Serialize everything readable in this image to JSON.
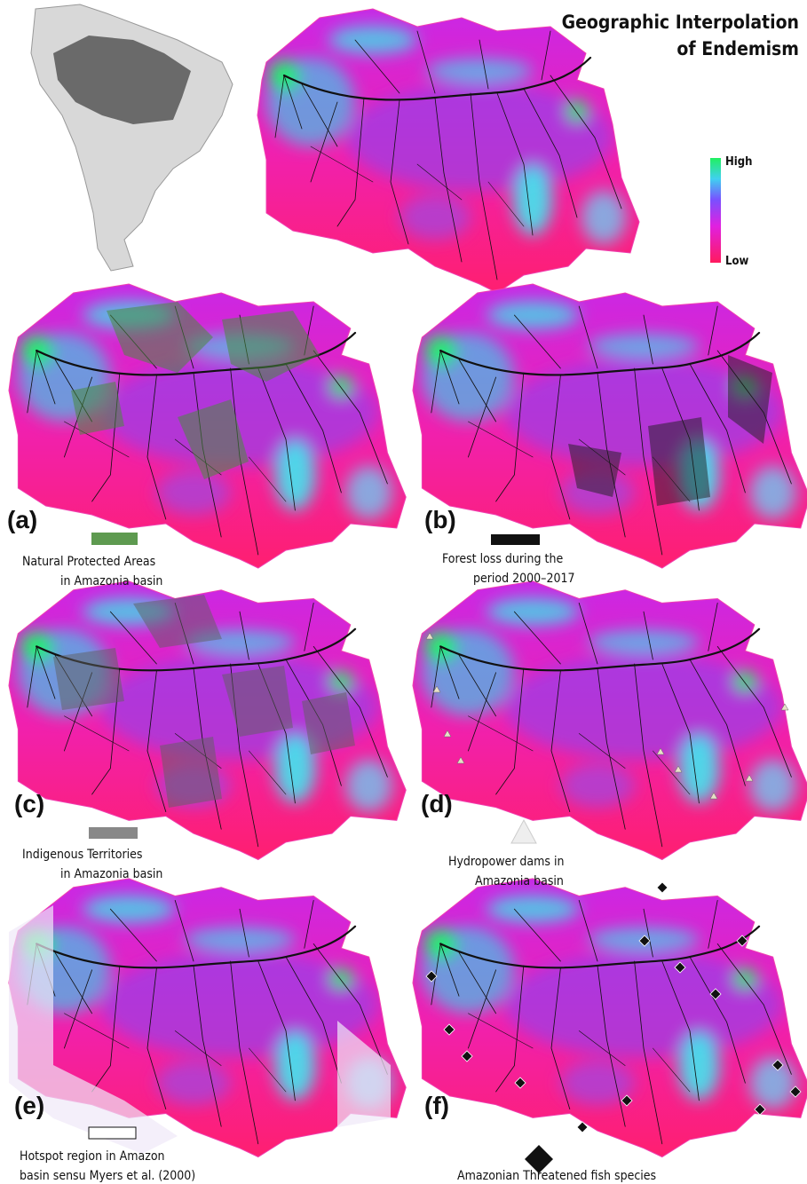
{
  "title": [
    "Geographic Interpolation",
    "of Endemism"
  ],
  "scale": {
    "high": "High",
    "low": "Low"
  },
  "panels": [
    {
      "label": "(a)",
      "legend": [
        "Natural Protected Areas",
        "in Amazonia basin"
      ]
    },
    {
      "label": "(b)",
      "legend": [
        "Forest loss during the",
        "period 2000–2017"
      ]
    },
    {
      "label": "(c)",
      "legend": [
        "Indigenous Territories",
        "in Amazonia basin"
      ]
    },
    {
      "label": "(d)",
      "legend": [
        "Hydropower dams in",
        "Amazonia basin"
      ]
    },
    {
      "label": "(e)",
      "legend": [
        "Hotspot region in Amazon",
        "basin sensu Myers et al. (2000)"
      ]
    },
    {
      "label": "(f)",
      "legend": [
        "Amazonian Threatened fish species"
      ]
    }
  ]
}
